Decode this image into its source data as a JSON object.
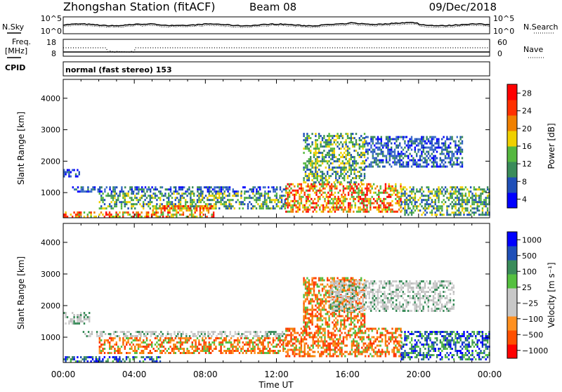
{
  "header": {
    "station": "Zhongshan Station (fitACF)",
    "beam": "Beam 08",
    "date": "09/Dec/2018"
  },
  "strip_labels": {
    "nsky": "N.Sky",
    "nsky_ticks": [
      "10^5",
      "10^0"
    ],
    "nsearch": "N.Search",
    "nsearch_ticks": [
      "10^5",
      "10^0"
    ],
    "freq": "Freq.",
    "freq_unit": "[MHz]",
    "freq_ticks": [
      "18",
      "8"
    ],
    "nave": "Nave",
    "nave_ticks": [
      "60",
      "0"
    ],
    "cpid": "CPID",
    "cpid_text": "normal (fast stereo) 153"
  },
  "colors": {
    "power_scale": [
      "#0000ff",
      "#1f4fb8",
      "#3a8c5a",
      "#55b840",
      "#f0d000",
      "#f08000",
      "#ff3000",
      "#ff0000"
    ],
    "velocity_scale": [
      "#ff0000",
      "#ff5000",
      "#ff9020",
      "#c8c8c8",
      "#c8c8c8",
      "#55c040",
      "#3a8c5a",
      "#1f4fb8",
      "#0000ff"
    ],
    "frame": "#000000"
  },
  "chart_data": [
    {
      "type": "heatmap",
      "panel": "power",
      "ylabel": "Slant Range [km]",
      "yticks": [
        "1000",
        "2000",
        "3000",
        "4000"
      ],
      "ylim": [
        200,
        4600
      ],
      "xlim": [
        "00:00",
        "24:00"
      ],
      "colorbar_label": "Power [dB]",
      "colorbar_ticks": [
        "4",
        "8",
        "12",
        "16",
        "20",
        "24",
        "28"
      ],
      "echo_regions": [
        {
          "t_start": 0.0,
          "t_end": 1.0,
          "range_start": 1500,
          "range_end": 1750,
          "level": "low"
        },
        {
          "t_start": 0.0,
          "t_end": 5.5,
          "range_start": 250,
          "range_end": 400,
          "level": "high"
        },
        {
          "t_start": 0.5,
          "t_end": 12.5,
          "range_start": 1000,
          "range_end": 1200,
          "level": "low"
        },
        {
          "t_start": 2.0,
          "t_end": 12.5,
          "range_start": 500,
          "range_end": 1000,
          "level": "medium"
        },
        {
          "t_start": 5.0,
          "t_end": 8.5,
          "range_start": 250,
          "range_end": 600,
          "level": "high"
        },
        {
          "t_start": 12.5,
          "t_end": 19.0,
          "range_start": 400,
          "range_end": 1300,
          "level": "high"
        },
        {
          "t_start": 13.5,
          "t_end": 17.0,
          "range_start": 1300,
          "range_end": 2900,
          "level": "medium"
        },
        {
          "t_start": 17.0,
          "t_end": 22.5,
          "range_start": 1800,
          "range_end": 2800,
          "level": "low"
        },
        {
          "t_start": 19.0,
          "t_end": 24.0,
          "range_start": 300,
          "range_end": 1200,
          "level": "medium"
        }
      ]
    },
    {
      "type": "heatmap",
      "panel": "velocity",
      "ylabel": "Slant Range [km]",
      "yticks": [
        "1000",
        "2000",
        "3000",
        "4000"
      ],
      "ylim": [
        200,
        4600
      ],
      "xlim": [
        "00:00",
        "24:00"
      ],
      "colorbar_label": "Velocity [m s⁻¹]",
      "colorbar_ticks": [
        "1000",
        "500",
        "100",
        "25",
        "−25",
        "−100",
        "−500",
        "−1000"
      ],
      "xlabel": "Time UT",
      "xticks": [
        "00:00",
        "04:00",
        "08:00",
        "12:00",
        "16:00",
        "20:00",
        "00:00"
      ],
      "echo_regions": [
        {
          "t_start": 0.0,
          "t_end": 1.5,
          "range_start": 1400,
          "range_end": 1800,
          "level": "ground"
        },
        {
          "t_start": 0.0,
          "t_end": 5.5,
          "range_start": 250,
          "range_end": 400,
          "level": "positive"
        },
        {
          "t_start": 1.0,
          "t_end": 12.5,
          "range_start": 1000,
          "range_end": 1200,
          "level": "ground"
        },
        {
          "t_start": 2.0,
          "t_end": 12.5,
          "range_start": 500,
          "range_end": 1000,
          "level": "negative"
        },
        {
          "t_start": 12.5,
          "t_end": 19.0,
          "range_start": 400,
          "range_end": 1300,
          "level": "negative"
        },
        {
          "t_start": 13.5,
          "t_end": 17.0,
          "range_start": 1300,
          "range_end": 2900,
          "level": "negative"
        },
        {
          "t_start": 15.0,
          "t_end": 22.0,
          "range_start": 1800,
          "range_end": 2800,
          "level": "ground"
        },
        {
          "t_start": 19.0,
          "t_end": 24.0,
          "range_start": 300,
          "range_end": 1200,
          "level": "positive"
        }
      ]
    }
  ]
}
